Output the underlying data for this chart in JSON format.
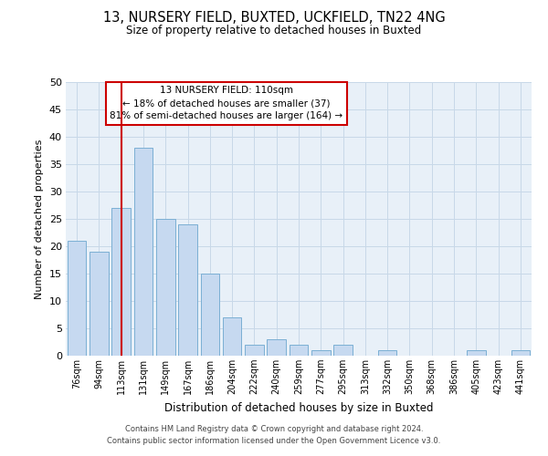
{
  "title": "13, NURSERY FIELD, BUXTED, UCKFIELD, TN22 4NG",
  "subtitle": "Size of property relative to detached houses in Buxted",
  "xlabel": "Distribution of detached houses by size in Buxted",
  "ylabel": "Number of detached properties",
  "bar_labels": [
    "76sqm",
    "94sqm",
    "113sqm",
    "131sqm",
    "149sqm",
    "167sqm",
    "186sqm",
    "204sqm",
    "222sqm",
    "240sqm",
    "259sqm",
    "277sqm",
    "295sqm",
    "313sqm",
    "332sqm",
    "350sqm",
    "368sqm",
    "386sqm",
    "405sqm",
    "423sqm",
    "441sqm"
  ],
  "bar_values": [
    21,
    19,
    27,
    38,
    25,
    24,
    15,
    7,
    2,
    3,
    2,
    1,
    2,
    0,
    1,
    0,
    0,
    0,
    1,
    0,
    1
  ],
  "bar_color": "#c6d9f0",
  "bar_edge_color": "#7bafd4",
  "vline_x_index": 2,
  "vline_color": "#cc0000",
  "ylim": [
    0,
    50
  ],
  "yticks": [
    0,
    5,
    10,
    15,
    20,
    25,
    30,
    35,
    40,
    45,
    50
  ],
  "annotation_title": "13 NURSERY FIELD: 110sqm",
  "annotation_line1": "← 18% of detached houses are smaller (37)",
  "annotation_line2": "81% of semi-detached houses are larger (164) →",
  "annotation_box_color": "#ffffff",
  "annotation_box_edge_color": "#cc0000",
  "footer_line1": "Contains HM Land Registry data © Crown copyright and database right 2024.",
  "footer_line2": "Contains public sector information licensed under the Open Government Licence v3.0.",
  "background_color": "#ffffff",
  "plot_bg_color": "#e8f0f8",
  "grid_color": "#c8d8e8"
}
